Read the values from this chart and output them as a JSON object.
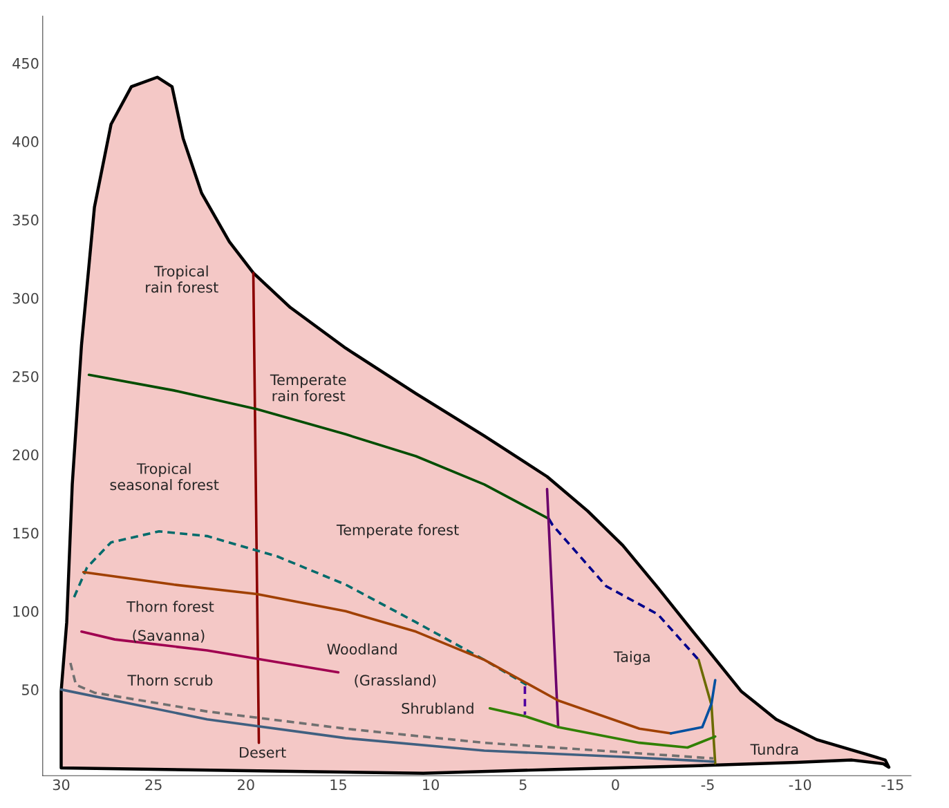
{
  "chart_data": {
    "type": "line",
    "xlim": [
      31,
      -16
    ],
    "ylim": [
      -5,
      480
    ],
    "xticks": [
      30,
      25,
      20,
      15,
      10,
      5,
      0,
      -5,
      -10,
      -15
    ],
    "yticks": [
      50,
      100,
      150,
      200,
      250,
      300,
      350,
      400,
      450
    ],
    "grid": false,
    "legend": false,
    "series": [
      {
        "type": "area",
        "color": "#f4c8c6",
        "x": [
          30,
          29.7,
          29.4,
          28.9,
          28.2,
          27.3,
          26.2,
          24.8,
          24.0,
          23.4,
          22.4,
          20.9,
          19.6,
          17.6,
          14.6,
          10.8,
          7.1,
          3.7,
          1.5,
          -0.4,
          -2.3,
          -4.2,
          -5.3,
          -6.8,
          -8.7,
          -10.9,
          -13.5,
          -14.6,
          -14.8,
          -14.5,
          -12.8,
          -9.8,
          -4.2,
          3.3,
          10.4,
          30
        ],
        "values": [
          49,
          93,
          181,
          270,
          358,
          411,
          435,
          441,
          435,
          402,
          367,
          336,
          316,
          294,
          268,
          239,
          212,
          186,
          164,
          142,
          115,
          87,
          71,
          49,
          31,
          18,
          9,
          5,
          0.4,
          2.6,
          5,
          3.5,
          1.3,
          -1,
          -3.5,
          0
        ]
      },
      {
        "color": "#8b0000",
        "line_style": "solid",
        "x": [
          19.6,
          19.3
        ],
        "values": [
          316,
          16
        ]
      },
      {
        "color": "#004d00",
        "line_style": "solid",
        "x": [
          28.5,
          23.9,
          19.4,
          14.6,
          10.8,
          7.1,
          3.6
        ],
        "values": [
          251,
          241,
          229,
          213,
          199,
          181,
          159
        ]
      },
      {
        "color": "#00008b",
        "line_style": "dashed",
        "x": [
          3.6,
          3.4,
          0.5,
          -2.3,
          -4.5
        ],
        "values": [
          159,
          155,
          116,
          98,
          69
        ]
      },
      {
        "color": "#6b6b00",
        "line_style": "solid",
        "x": [
          -4.5,
          -5.2,
          -5.4
        ],
        "values": [
          69,
          40,
          3
        ]
      },
      {
        "color": "#6b006b",
        "line_style": "solid",
        "x": [
          3.7,
          3.1
        ],
        "values": [
          178,
          26
        ]
      },
      {
        "color": "#006b6b",
        "line_style": "dashed",
        "x": [
          29.3,
          28.6,
          27.3,
          24.7,
          22.1,
          18.3,
          14.6,
          10.8,
          7.1,
          4.8
        ],
        "values": [
          109,
          128,
          144,
          151,
          148,
          135,
          117,
          93,
          69,
          53
        ]
      },
      {
        "color": "#a04000",
        "line_style": "solid",
        "x": [
          28.8,
          23.9,
          19.4,
          14.6,
          10.8,
          7.1,
          3.1,
          -1.3,
          -3.0
        ],
        "values": [
          125,
          117,
          111,
          100,
          87,
          69,
          43,
          25,
          22
        ]
      },
      {
        "color": "#0050a0",
        "line_style": "solid",
        "x": [
          -3.0,
          -4.7,
          -5.2,
          -5.4
        ],
        "values": [
          22,
          26,
          41,
          56
        ]
      },
      {
        "color": "#308000",
        "line_style": "solid",
        "x": [
          6.8,
          4.9,
          3.1,
          -1.3,
          -3.9,
          -5.4
        ],
        "values": [
          38,
          33,
          26,
          16,
          13,
          20
        ]
      },
      {
        "color": "#a00050",
        "line_style": "solid",
        "x": [
          28.9,
          27.1,
          22.1,
          15.0
        ],
        "values": [
          87,
          82,
          75,
          61
        ]
      },
      {
        "color": "#5000a0",
        "line_style": "dashed",
        "x": [
          4.9,
          4.9
        ],
        "values": [
          52,
          34
        ]
      },
      {
        "color": "#707070",
        "line_style": "dashed",
        "x": [
          29.5,
          29.2,
          28.2,
          22.1,
          14.6,
          7.1,
          -0.4,
          -5.3
        ],
        "values": [
          67,
          53,
          48,
          36,
          25,
          16,
          10,
          6
        ]
      },
      {
        "color": "#406080",
        "line_style": "solid",
        "x": [
          30,
          22.1,
          14.6,
          7.1,
          -0.4,
          -5.3
        ],
        "values": [
          50,
          31,
          19,
          11,
          7,
          4
        ]
      }
    ],
    "annotations": [
      "Tropical\nrain forest",
      "Temperate\nrain forest",
      "Tropical\nseasonal forest",
      "Temperate forest",
      "Thorn forest",
      "(Savanna)",
      "Woodland",
      "(Grassland)",
      "Thorn scrub",
      "Shrubland",
      "Taiga",
      "Desert",
      "Tundra"
    ]
  }
}
